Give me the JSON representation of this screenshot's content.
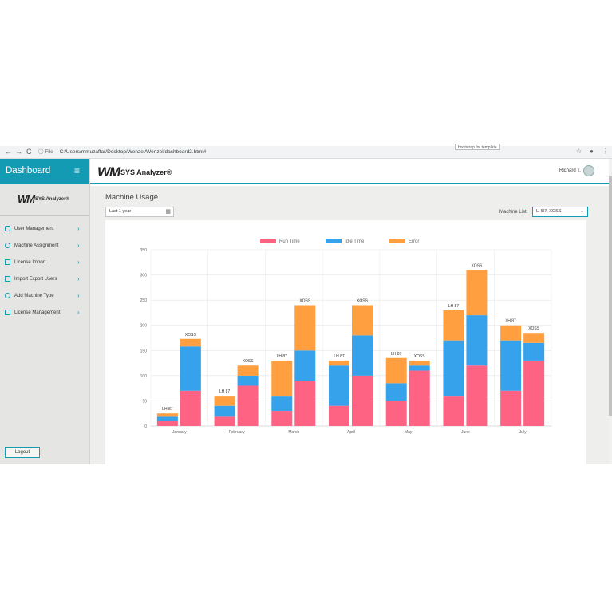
{
  "browser": {
    "back": "←",
    "forward": "→",
    "reload": "C",
    "info": "ⓘ",
    "file_label": "File",
    "url": "C:/Users/mmuzaffar/Desktop/Wenzel/Wenzel/dashboard2.html#",
    "tooltip": "bootstrap  for  template",
    "star": "☆",
    "account": "●",
    "more": "⋮"
  },
  "sidebar": {
    "title": "Dashboard",
    "menu_icon": "≡",
    "logo_mark": "WM",
    "logo_name": "SYS Analyzer®",
    "items": [
      {
        "label": "User Management",
        "icon": "users-icon"
      },
      {
        "label": "Machine Assignment",
        "icon": "gear-icon"
      },
      {
        "label": "License Import",
        "icon": "document-icon"
      },
      {
        "label": "Import Export Users",
        "icon": "import-icon"
      },
      {
        "label": "Add Machine Type",
        "icon": "settings-icon"
      },
      {
        "label": "License Management",
        "icon": "license-icon"
      }
    ],
    "chevron": "›",
    "logout": "Logout"
  },
  "header": {
    "logo_mark": "WM",
    "logo_name": "SYS Analyzer®",
    "user_name": "Richard T."
  },
  "main": {
    "title": "Machine Usage",
    "range": "Last 1 year",
    "calendar_icon": "▦",
    "machine_list_label": "Machine List:",
    "machine_list_value": "LH87, XOSS",
    "chevron_down": "⌄"
  },
  "colors": {
    "accent": "#139bb4",
    "run": "#ff6384",
    "idle": "#36a2eb",
    "error": "#ff9f40"
  },
  "chart_data": {
    "type": "bar",
    "stacked": true,
    "categories": [
      "January",
      "February",
      "March",
      "April",
      "May",
      "June",
      "July"
    ],
    "machines": [
      "LH 87",
      "XOSS"
    ],
    "ylim": [
      0,
      350
    ],
    "yticks": [
      0,
      50,
      100,
      150,
      200,
      250,
      300,
      350
    ],
    "legend_position": "top",
    "grid": true,
    "series": [
      {
        "name": "Run Time",
        "color": "#ff6384",
        "values": {
          "LH 87": [
            10,
            20,
            30,
            40,
            50,
            60,
            70
          ],
          "XOSS": [
            70,
            80,
            90,
            100,
            110,
            120,
            130
          ]
        }
      },
      {
        "name": "Idle Time",
        "color": "#36a2eb",
        "values": {
          "LH 87": [
            10,
            20,
            30,
            80,
            35,
            110,
            100
          ],
          "XOSS": [
            88,
            20,
            60,
            80,
            10,
            100,
            35
          ]
        }
      },
      {
        "name": "Error",
        "color": "#ff9f40",
        "values": {
          "LH 87": [
            5,
            20,
            70,
            10,
            50,
            60,
            30
          ],
          "XOSS": [
            15,
            20,
            90,
            60,
            10,
            90,
            20
          ]
        }
      }
    ]
  }
}
